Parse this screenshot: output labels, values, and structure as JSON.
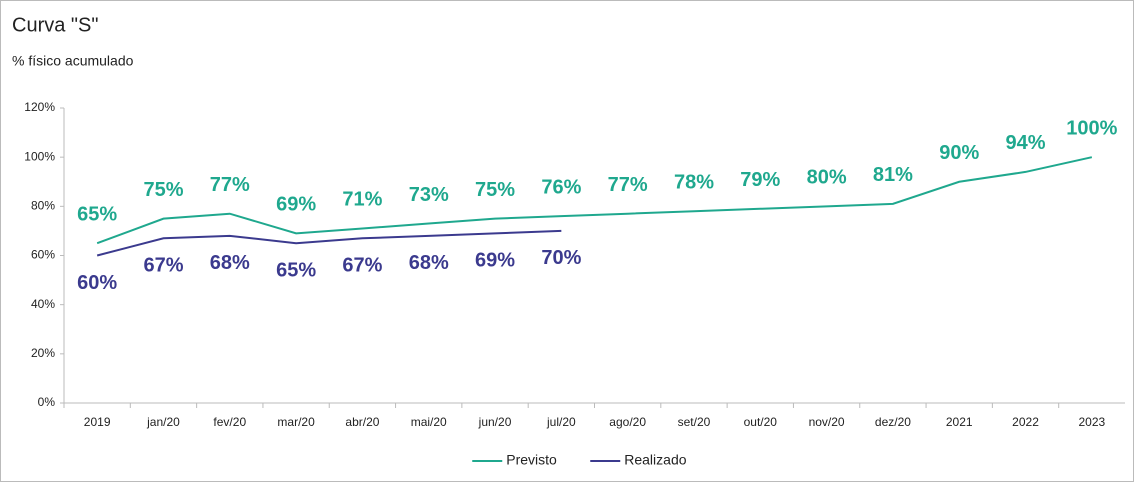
{
  "chart_data": {
    "type": "line",
    "title": "Curva \"S\"",
    "subtitle": "% físico acumulado",
    "categories": [
      "2019",
      "jan/20",
      "fev/20",
      "mar/20",
      "abr/20",
      "mai/20",
      "jun/20",
      "jul/20",
      "ago/20",
      "set/20",
      "out/20",
      "nov/20",
      "dez/20",
      "2021",
      "2022",
      "2023"
    ],
    "series": [
      {
        "name": "Previsto",
        "color": "#1fa88e",
        "values": [
          65,
          75,
          77,
          69,
          71,
          73,
          75,
          76,
          77,
          78,
          79,
          80,
          81,
          90,
          94,
          100
        ],
        "value_labels": [
          "65%",
          "75%",
          "77%",
          "69%",
          "71%",
          "73%",
          "75%",
          "76%",
          "77%",
          "78%",
          "79%",
          "80%",
          "81%",
          "90%",
          "94%",
          "100%"
        ]
      },
      {
        "name": "Realizado",
        "color": "#3b3a8e",
        "values": [
          60,
          67,
          68,
          65,
          67,
          68,
          69,
          70,
          null,
          null,
          null,
          null,
          null,
          null,
          null,
          null
        ],
        "value_labels": [
          "60%",
          "67%",
          "68%",
          "65%",
          "67%",
          "68%",
          "69%",
          "70%",
          null,
          null,
          null,
          null,
          null,
          null,
          null,
          null
        ]
      }
    ],
    "ylim": [
      0,
      120
    ],
    "yticks": [
      {
        "value": 0,
        "label": "0%"
      },
      {
        "value": 20,
        "label": "20%"
      },
      {
        "value": 40,
        "label": "40%"
      },
      {
        "value": 60,
        "label": "60%"
      },
      {
        "value": 80,
        "label": "80%"
      },
      {
        "value": 100,
        "label": "100%"
      },
      {
        "value": 120,
        "label": "120%"
      }
    ],
    "legend": "bottom"
  }
}
